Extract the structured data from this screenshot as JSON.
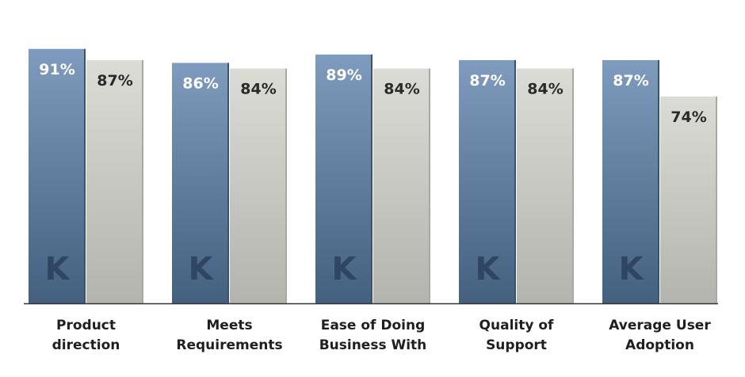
{
  "chart_data": {
    "type": "bar",
    "categories": [
      [
        "Product",
        "direction"
      ],
      [
        "Meets",
        "Requirements"
      ],
      [
        "Ease of Doing",
        "Business With"
      ],
      [
        "Quality of",
        "Support"
      ],
      [
        "Average User",
        "Adoption"
      ]
    ],
    "series": [
      {
        "values": [
          91,
          86,
          89,
          87,
          87
        ],
        "labels": [
          "91%",
          "86%",
          "89%",
          "87%",
          "87%"
        ]
      },
      {
        "values": [
          87,
          84,
          84,
          84,
          74
        ],
        "labels": [
          "87%",
          "84%",
          "84%",
          "84%",
          "74%"
        ]
      }
    ],
    "title": "",
    "xlabel": "",
    "ylabel": "",
    "ylim": [
      0,
      100
    ],
    "grid": false,
    "legend": "none",
    "watermark": "K"
  },
  "colors": {
    "series1_top": "#7f9bbd",
    "series1_bottom": "#44607f",
    "series1_label": "#ffffff",
    "series2_top": "#dcdcd6",
    "series2_bottom": "#b4b4ae",
    "series2_label": "#2a2a2a",
    "logo": "#2f4662",
    "baseline": "#333333"
  }
}
